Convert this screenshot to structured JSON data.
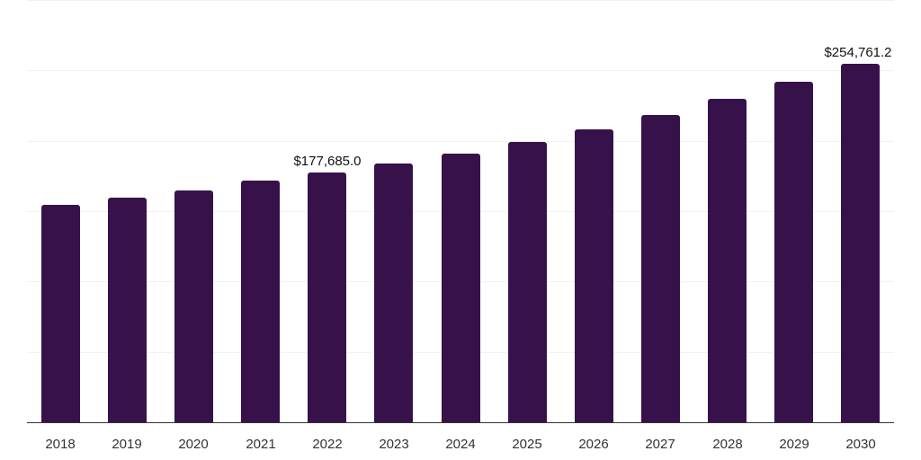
{
  "chart_data": {
    "type": "bar",
    "title": "",
    "xlabel": "",
    "ylabel": "",
    "categories": [
      "2018",
      "2019",
      "2020",
      "2021",
      "2022",
      "2023",
      "2024",
      "2025",
      "2026",
      "2027",
      "2028",
      "2029",
      "2030"
    ],
    "values": [
      154700,
      159800,
      164900,
      171900,
      177685.0,
      184100,
      191100,
      199400,
      208400,
      218000,
      229500,
      241600,
      254761.2
    ],
    "data_labels": [
      {
        "category": "2022",
        "text": "$177,685.0"
      },
      {
        "category": "2030",
        "text": "$254,761.2"
      }
    ],
    "ylim": [
      0,
      300000
    ],
    "grid": true,
    "gridline_step": 50000,
    "y_tick_labels_visible": false,
    "legend": "none",
    "bar_color": "#37124a"
  }
}
